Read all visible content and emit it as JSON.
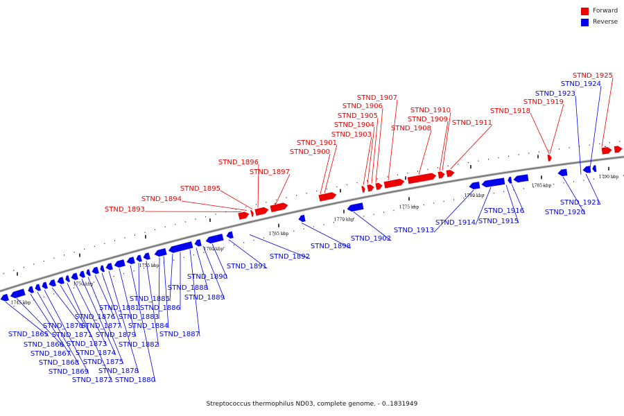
{
  "colors": {
    "forward": "#ee0000",
    "reverse": "#0000ee",
    "backbone": "#777777"
  },
  "legend": {
    "forward_label": "Forward",
    "reverse_label": "Reverse"
  },
  "footer": {
    "title": "Streptococcus thermophilus ND03, complete genome. - 0..1831949"
  },
  "axis": {
    "unit": "kbp",
    "major_ticks": [
      1745,
      1750,
      1755,
      1760,
      1765,
      1770,
      1775,
      1780,
      1785,
      1790
    ],
    "tick_labels": [
      "1745 kbp",
      "1750 kbp",
      "1755 kbp",
      "1760 kbp",
      "1765 kbp",
      "1770 kbp",
      "1775 kbp",
      "1780 kbp",
      "1785 kbp",
      "1790 kbp"
    ]
  },
  "genes": {
    "reverse": [
      "STND_1865",
      "STND_1866",
      "STND_1867",
      "STND_1868",
      "STND_1869",
      "STND_1870",
      "STND_1871",
      "STND_1872",
      "STND_1873",
      "STND_1874",
      "STND_1875",
      "STND_1876",
      "STND_1877",
      "STND_1878",
      "STND_1879",
      "STND_1880",
      "STND_1881",
      "STND_1882",
      "STND_1883",
      "STND_1884",
      "STND_1885",
      "STND_1886",
      "STND_1887",
      "STND_1888",
      "STND_1889",
      "STND_1890",
      "STND_1891",
      "STND_1892",
      "STND_1898",
      "STND_1902",
      "STND_1913",
      "STND_1914",
      "STND_1915",
      "STND_1916",
      "STND_1920",
      "STND_1921",
      "STND_1923",
      "STND_1924"
    ],
    "forward": [
      "STND_1893",
      "STND_1894",
      "STND_1895",
      "STND_1896",
      "STND_1897",
      "STND_1900",
      "STND_1901",
      "STND_1903",
      "STND_1904",
      "STND_1905",
      "STND_1906",
      "STND_1907",
      "STND_1908",
      "STND_1909",
      "STND_1910",
      "STND_1911",
      "STND_1918",
      "STND_1919",
      "STND_1925"
    ]
  }
}
